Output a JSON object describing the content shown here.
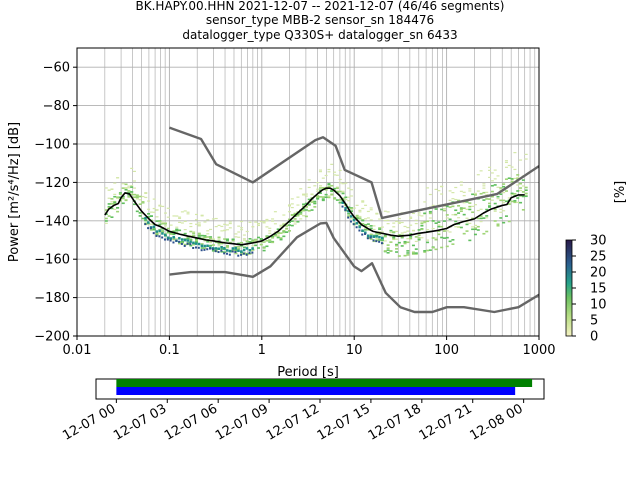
{
  "title_lines": [
    "BK.HAPY.00.HHN   2021-12-07 -- 2021-12-07  (46/46 segments)",
    "sensor_type MBB-2 sensor_sn 184476",
    "datalogger_type Q330S+ datalogger_sn 6433"
  ],
  "chart_data": [
    {
      "type": "line",
      "title": "",
      "xlabel": "Period [s]",
      "ylabel": "Power [m²/s⁴/Hz] [dB]",
      "xscale": "log",
      "xlim": [
        0.01,
        1000
      ],
      "ylim": [
        -200,
        -50
      ],
      "x_ticks": [
        {
          "value": 0.01,
          "label": "0.01"
        },
        {
          "value": 0.1,
          "label": "0.1"
        },
        {
          "value": 1,
          "label": "1"
        },
        {
          "value": 10,
          "label": "10"
        },
        {
          "value": 100,
          "label": "100"
        },
        {
          "value": 1000,
          "label": "1000"
        }
      ],
      "y_ticks": [
        {
          "value": -60,
          "label": "−60"
        },
        {
          "value": -80,
          "label": "−80"
        },
        {
          "value": -100,
          "label": "−100"
        },
        {
          "value": -120,
          "label": "−120"
        },
        {
          "value": -140,
          "label": "−140"
        },
        {
          "value": -160,
          "label": "−160"
        },
        {
          "value": -180,
          "label": "−180"
        },
        {
          "value": -200,
          "label": "−200"
        }
      ],
      "grid": true,
      "series": [
        {
          "role": "high-noise-model",
          "color": "#666666",
          "points": [
            [
              0.1,
              -91.5
            ],
            [
              0.22,
              -97.4
            ],
            [
              0.32,
              -110.5
            ],
            [
              0.8,
              -120
            ],
            [
              3.8,
              -98
            ],
            [
              4.6,
              -96.5
            ],
            [
              6.3,
              -101
            ],
            [
              7.9,
              -113.5
            ],
            [
              15.4,
              -120
            ],
            [
              20,
              -138.5
            ],
            [
              354,
              -126
            ],
            [
              1000,
              -111.5
            ]
          ]
        },
        {
          "role": "low-noise-model",
          "color": "#666666",
          "points": [
            [
              0.1,
              -168
            ],
            [
              0.17,
              -166.7
            ],
            [
              0.4,
              -166.7
            ],
            [
              0.8,
              -169.2
            ],
            [
              1.24,
              -163.7
            ],
            [
              2.4,
              -148.6
            ],
            [
              4.3,
              -141.4
            ],
            [
              5.0,
              -141.1
            ],
            [
              6.0,
              -149
            ],
            [
              10,
              -163.8
            ],
            [
              12,
              -166.2
            ],
            [
              15.6,
              -162.1
            ],
            [
              21.9,
              -177.5
            ],
            [
              31.6,
              -185
            ],
            [
              45,
              -187.5
            ],
            [
              70,
              -187.5
            ],
            [
              101,
              -185
            ],
            [
              154,
              -185
            ],
            [
              328,
              -187.5
            ],
            [
              600,
              -185
            ],
            [
              1000,
              -178.5
            ]
          ]
        },
        {
          "role": "mode",
          "color": "#000000",
          "points": [
            [
              0.02,
              -137
            ],
            [
              0.022,
              -134
            ],
            [
              0.025,
              -132
            ],
            [
              0.028,
              -131
            ],
            [
              0.03,
              -128
            ],
            [
              0.033,
              -125.5
            ],
            [
              0.037,
              -126
            ],
            [
              0.042,
              -130
            ],
            [
              0.05,
              -135
            ],
            [
              0.06,
              -139
            ],
            [
              0.07,
              -142
            ],
            [
              0.08,
              -143
            ],
            [
              0.1,
              -145.5
            ],
            [
              0.13,
              -147
            ],
            [
              0.16,
              -148
            ],
            [
              0.2,
              -149
            ],
            [
              0.25,
              -150
            ],
            [
              0.3,
              -150.5
            ],
            [
              0.4,
              -151.5
            ],
            [
              0.5,
              -152
            ],
            [
              0.6,
              -152.5
            ],
            [
              0.7,
              -152
            ],
            [
              0.8,
              -151.5
            ],
            [
              1.0,
              -150.5
            ],
            [
              1.2,
              -148.5
            ],
            [
              1.5,
              -145.5
            ],
            [
              2.0,
              -140
            ],
            [
              2.5,
              -135.5
            ],
            [
              3.0,
              -132
            ],
            [
              3.5,
              -128.5
            ],
            [
              4.0,
              -126
            ],
            [
              4.5,
              -124
            ],
            [
              5.0,
              -123
            ],
            [
              5.5,
              -123
            ],
            [
              6.0,
              -124
            ],
            [
              7.0,
              -127
            ],
            [
              8.0,
              -131
            ],
            [
              9.0,
              -135
            ],
            [
              10,
              -138
            ],
            [
              12,
              -142
            ],
            [
              14,
              -144
            ],
            [
              16,
              -145.5
            ],
            [
              20,
              -146.5
            ],
            [
              25,
              -147.5
            ],
            [
              30,
              -148
            ],
            [
              40,
              -147.5
            ],
            [
              50,
              -146.5
            ],
            [
              60,
              -146
            ],
            [
              80,
              -145
            ],
            [
              100,
              -144
            ],
            [
              120,
              -142
            ],
            [
              150,
              -140.5
            ],
            [
              200,
              -139
            ],
            [
              250,
              -136
            ],
            [
              300,
              -134
            ],
            [
              400,
              -132
            ],
            [
              450,
              -131.5
            ],
            [
              500,
              -128
            ],
            [
              600,
              -126.5
            ],
            [
              700,
              -126.5
            ]
          ]
        }
      ],
      "colorbar": {
        "label": "[%]",
        "vmin": 0,
        "vmax": 30,
        "ticks": [
          "0",
          "5",
          "10",
          "15",
          "20",
          "25",
          "30"
        ]
      }
    },
    {
      "type": "timeline",
      "tick_labels": [
        "12-07 00",
        "12-07 03",
        "12-07 06",
        "12-07 09",
        "12-07 12",
        "12-07 15",
        "12-07 18",
        "12-07 21",
        "12-08 00"
      ],
      "tick_hours": [
        0,
        3,
        6,
        9,
        12,
        15,
        18,
        21,
        24
      ],
      "xlim_hours": [
        -1.2,
        25.2
      ],
      "bars": [
        {
          "role": "data-coverage",
          "color": "#008000",
          "start_hour": 0,
          "end_hour": 24.5
        },
        {
          "role": "psd-segments",
          "color": "#0000ff",
          "start_hour": 0,
          "end_hour": 23.5
        }
      ]
    }
  ]
}
